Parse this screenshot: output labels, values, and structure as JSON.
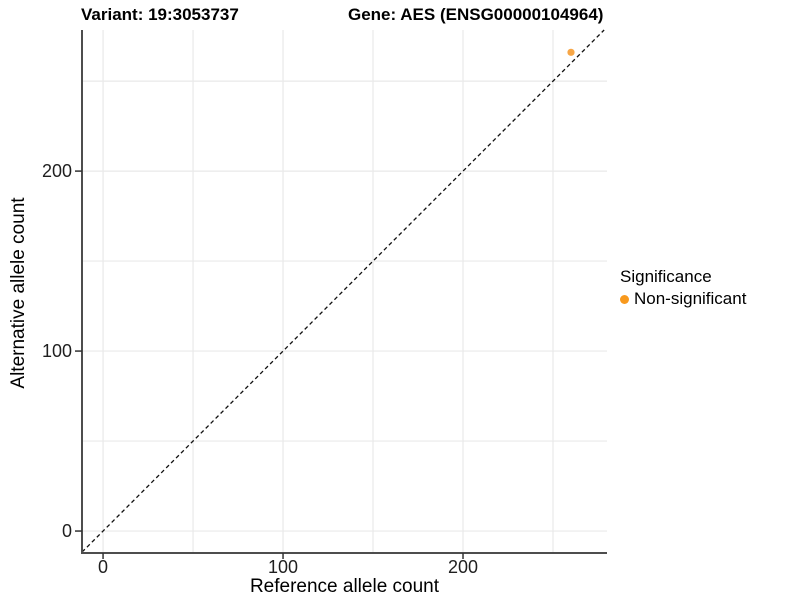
{
  "chart_data": {
    "type": "scatter",
    "title_left": "Variant: 19:3053737",
    "title_right": "Gene: AES (ENSG00000104964)",
    "xlabel": "Reference allele count",
    "ylabel": "Alternative allele count",
    "xlim": [
      -11.7,
      280
    ],
    "ylim": [
      -12.2,
      278.4
    ],
    "x_ticks": [
      0,
      100,
      200
    ],
    "y_ticks": [
      0,
      100,
      200
    ],
    "grid_every": 50,
    "grid_on": true,
    "points": [
      {
        "x": 260,
        "y": 266,
        "series": "Non-significant",
        "color": "#F7A13C"
      }
    ],
    "reference_line": {
      "kind": "identity",
      "style": "dashed",
      "color": "#111111"
    },
    "legend_position": "right"
  },
  "legend": {
    "title": "Significance",
    "items": [
      {
        "label": "Non-significant",
        "color": "#F8991D"
      }
    ]
  },
  "colors": {
    "background": "#ffffff",
    "grid": "#e9e9e9",
    "axis_line": "#4d4d4d",
    "tick_mark": "#333333",
    "tick_text": "#1f1f1f",
    "point": "#F7A13C"
  }
}
